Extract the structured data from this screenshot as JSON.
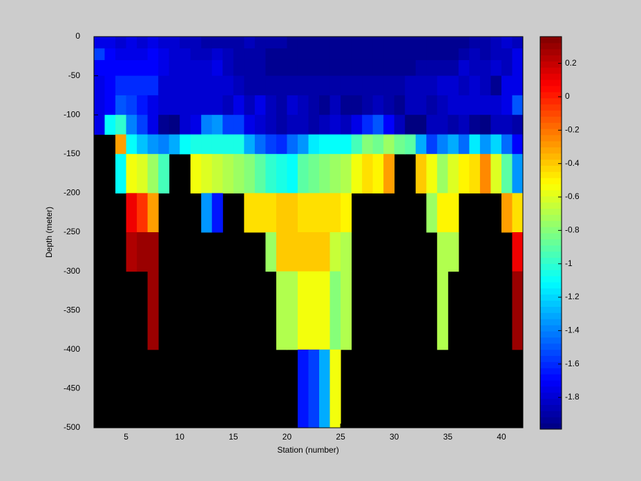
{
  "chart_data": {
    "type": "heatmap",
    "xlabel": "Station (number)",
    "ylabel": "Depth (meter)",
    "colormap": "jet",
    "xedges": [
      2,
      3,
      4,
      5,
      6,
      7,
      8,
      9,
      10,
      11,
      12,
      13,
      14,
      15,
      16,
      17,
      18,
      19,
      20,
      21,
      22,
      23,
      24,
      25,
      26,
      27,
      28,
      29,
      30,
      31,
      32,
      33,
      34,
      35,
      36,
      37,
      38,
      39,
      40,
      41,
      42
    ],
    "yedges": [
      0,
      -15,
      -30,
      -50,
      -75,
      -100,
      -125,
      -150,
      -200,
      -250,
      -300,
      -400,
      -500
    ],
    "z": [
      [
        -1.75,
        -1.75,
        -1.8,
        -1.75,
        -1.8,
        -1.75,
        -1.8,
        -1.8,
        -1.85,
        -1.85,
        -1.9,
        -1.9,
        -1.9,
        -1.9,
        -1.85,
        -1.9,
        -1.9,
        -1.9,
        -1.95,
        -1.95,
        -1.95,
        -1.95,
        -1.95,
        -1.95,
        -1.95,
        -1.95,
        -1.95,
        -1.95,
        -1.95,
        -1.95,
        -1.95,
        -1.95,
        -1.95,
        -1.95,
        -1.95,
        -1.9,
        -1.9,
        -1.85,
        -1.8,
        -1.85
      ],
      [
        -1.55,
        -1.7,
        -1.75,
        -1.75,
        -1.75,
        -1.7,
        -1.75,
        -1.8,
        -1.8,
        -1.85,
        -1.85,
        -1.8,
        -1.85,
        -1.9,
        -1.9,
        -1.9,
        -1.95,
        -1.95,
        -1.95,
        -1.95,
        -1.95,
        -1.95,
        -1.95,
        -1.95,
        -1.95,
        -1.95,
        -1.95,
        -1.95,
        -1.95,
        -1.95,
        -1.95,
        -1.95,
        -1.95,
        -1.95,
        -1.9,
        -1.85,
        -1.9,
        -1.85,
        -1.85,
        -1.75
      ],
      [
        -1.7,
        -1.7,
        -1.7,
        -1.7,
        -1.7,
        -1.7,
        -1.75,
        -1.8,
        -1.8,
        -1.8,
        -1.8,
        -1.75,
        -1.85,
        -1.9,
        -1.9,
        -1.9,
        -1.95,
        -1.95,
        -1.95,
        -1.95,
        -1.95,
        -1.95,
        -1.95,
        -1.95,
        -1.95,
        -1.95,
        -1.95,
        -1.95,
        -1.95,
        -1.95,
        -1.9,
        -1.9,
        -1.9,
        -1.9,
        -1.8,
        -1.85,
        -1.85,
        -1.8,
        -1.85,
        -1.75
      ],
      [
        -1.75,
        -1.7,
        -1.6,
        -1.6,
        -1.6,
        -1.6,
        -1.8,
        -1.8,
        -1.8,
        -1.8,
        -1.8,
        -1.8,
        -1.8,
        -1.85,
        -1.9,
        -1.9,
        -1.9,
        -1.9,
        -1.9,
        -1.9,
        -1.9,
        -1.9,
        -1.9,
        -1.9,
        -1.9,
        -1.9,
        -1.9,
        -1.9,
        -1.9,
        -1.85,
        -1.85,
        -1.85,
        -1.8,
        -1.8,
        -1.85,
        -1.8,
        -1.85,
        -1.95,
        -1.75,
        -1.75
      ],
      [
        -1.75,
        -1.7,
        -1.5,
        -1.55,
        -1.65,
        -1.75,
        -1.8,
        -1.8,
        -1.8,
        -1.8,
        -1.8,
        -1.8,
        -1.85,
        -1.75,
        -1.85,
        -1.75,
        -1.85,
        -1.9,
        -1.8,
        -1.85,
        -1.9,
        -1.95,
        -1.85,
        -1.95,
        -1.95,
        -1.9,
        -1.85,
        -1.9,
        -1.95,
        -1.85,
        -1.85,
        -1.9,
        -1.85,
        -1.8,
        -1.8,
        -1.8,
        -1.8,
        -1.8,
        -1.75,
        -1.5
      ],
      [
        -1.75,
        -1.1,
        -1.0,
        -1.4,
        -1.55,
        -1.75,
        -1.95,
        -1.98,
        -1.8,
        -1.75,
        -1.4,
        -1.35,
        -1.55,
        -1.55,
        -1.75,
        -1.8,
        -1.85,
        -1.9,
        -1.85,
        -1.85,
        -1.9,
        -1.85,
        -1.8,
        -1.85,
        -1.75,
        -1.6,
        -1.5,
        -1.7,
        -1.85,
        -1.99,
        -1.99,
        -1.85,
        -1.85,
        -1.9,
        -1.85,
        -1.95,
        -1.98,
        -1.85,
        -1.85,
        -1.9
      ],
      [
        null,
        null,
        -0.3,
        -1.1,
        -1.25,
        -1.35,
        -1.4,
        -1.3,
        -1.1,
        -1.05,
        -1.05,
        -1.05,
        -1.05,
        -1.05,
        -1.3,
        -1.45,
        -1.55,
        -1.6,
        -1.45,
        -1.35,
        -1.15,
        -1.1,
        -1.1,
        -1.1,
        -0.95,
        -0.8,
        -0.85,
        -0.75,
        -0.85,
        -0.9,
        -1.3,
        -1.55,
        -1.4,
        -1.3,
        -1.45,
        -1.15,
        -1.35,
        -1.2,
        -1.45,
        -1.7
      ],
      [
        null,
        null,
        -1.1,
        -0.55,
        -0.6,
        -0.75,
        -0.95,
        null,
        null,
        -0.55,
        -0.6,
        -0.65,
        -0.7,
        -0.75,
        -0.8,
        -0.9,
        -1.0,
        -1.05,
        -1.1,
        -0.9,
        -0.85,
        -0.8,
        -0.75,
        -0.7,
        -0.55,
        -0.45,
        -0.5,
        -0.3,
        null,
        null,
        -0.4,
        -0.55,
        -0.75,
        -0.6,
        -0.5,
        -0.45,
        -0.25,
        -0.6,
        -0.9,
        -1.35
      ],
      [
        null,
        null,
        null,
        0.1,
        -0.05,
        -0.3,
        null,
        null,
        null,
        null,
        -1.35,
        -1.65,
        null,
        null,
        -0.45,
        -0.45,
        -0.45,
        -0.4,
        -0.4,
        -0.45,
        -0.45,
        -0.45,
        -0.45,
        -0.5,
        null,
        null,
        null,
        null,
        null,
        null,
        null,
        -0.75,
        -0.5,
        -0.5,
        null,
        null,
        null,
        null,
        -0.3,
        -0.45
      ],
      [
        null,
        null,
        null,
        0.25,
        0.3,
        0.3,
        null,
        null,
        null,
        null,
        null,
        null,
        null,
        null,
        null,
        null,
        -0.75,
        -0.4,
        -0.4,
        -0.4,
        -0.4,
        -0.4,
        -0.65,
        -0.7,
        null,
        null,
        null,
        null,
        null,
        null,
        null,
        null,
        -0.7,
        -0.7,
        null,
        null,
        null,
        null,
        null,
        0.1
      ],
      [
        null,
        null,
        null,
        null,
        null,
        0.3,
        null,
        null,
        null,
        null,
        null,
        null,
        null,
        null,
        null,
        null,
        null,
        -0.7,
        -0.7,
        -0.55,
        -0.55,
        -0.55,
        -0.8,
        -0.7,
        null,
        null,
        null,
        null,
        null,
        null,
        null,
        null,
        -0.7,
        null,
        null,
        null,
        null,
        null,
        null,
        0.3
      ],
      [
        null,
        null,
        null,
        null,
        null,
        null,
        null,
        null,
        null,
        null,
        null,
        null,
        null,
        null,
        null,
        null,
        null,
        null,
        null,
        -1.65,
        -1.55,
        -1.3,
        -0.55,
        null,
        null,
        null,
        null,
        null,
        null,
        null,
        null,
        null,
        null,
        null,
        null,
        null,
        null,
        null,
        null,
        null
      ]
    ],
    "xlim": [
      2,
      42
    ],
    "xticks": [
      5,
      10,
      15,
      20,
      25,
      30,
      35,
      40
    ],
    "ylim": [
      -500,
      0
    ],
    "yticks": [
      0,
      -50,
      -100,
      -150,
      -200,
      -250,
      -300,
      -350,
      -400,
      -450,
      -500
    ],
    "clim": [
      -1.99,
      0.36
    ],
    "cticks": [
      0.2,
      0,
      -0.2,
      -0.4,
      -0.6,
      -0.8,
      -1,
      -1.2,
      -1.4,
      -1.6,
      -1.8
    ]
  }
}
